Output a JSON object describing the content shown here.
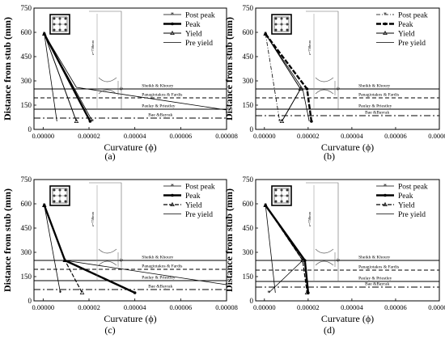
{
  "figure": {
    "panels": [
      "(a)",
      "(b)",
      "(c)",
      "(d)"
    ]
  },
  "chart_data": [
    {
      "panel": "(a)",
      "type": "line",
      "xlabel": "Curvature (ϕ)",
      "ylabel": "Distance from stub (mm)",
      "xlim": [
        -4e-06,
        8e-05
      ],
      "ylim": [
        0,
        750
      ],
      "xticks": [
        "0.00000",
        "0.00002",
        "0.00004",
        "0.00006",
        "0.00008"
      ],
      "yticks": [
        "0",
        "150",
        "300",
        "450",
        "600",
        "750"
      ],
      "legend_position": "top-right",
      "series": [
        {
          "name": "Post peak",
          "style": "thin-star",
          "x": [
            5e-07,
            2.15e-05
          ],
          "y": [
            590,
            50
          ]
        },
        {
          "name": "Peak",
          "style": "thick",
          "x": [
            5e-07,
            2.05e-05
          ],
          "y": [
            590,
            50
          ]
        },
        {
          "name": "Yield",
          "style": "triangle",
          "x": [
            5e-07,
            1.45e-05
          ],
          "y": [
            590,
            50
          ]
        },
        {
          "name": "Pre yield",
          "style": "thin",
          "x": [
            5e-07,
            6e-06
          ],
          "y": [
            590,
            50
          ]
        },
        {
          "name": "Pre yield",
          "style": "thin",
          "x": [
            5e-07,
            1.45e-05,
            8e-05
          ],
          "y": [
            590,
            260,
            120
          ]
        }
      ],
      "reference_lines": [
        {
          "label": "Sheikh & Khoury",
          "y": 250,
          "style": "solid"
        },
        {
          "label": "Panagiotakos & Fardis",
          "y": 195,
          "style": "dashed"
        },
        {
          "label": "Paulay & Priestley",
          "y": 125,
          "style": "solid"
        },
        {
          "label": "Bae &Bayrak",
          "y": 70,
          "style": "dashdot"
        }
      ],
      "inset_labels": {
        "height": "z=750mm",
        "plastic_length": "lp"
      }
    },
    {
      "panel": "(b)",
      "type": "line",
      "xlabel": "Curvature (ϕ)",
      "ylabel": "Distance from stub (mm)",
      "xlim": [
        -4e-06,
        8e-05
      ],
      "ylim": [
        0,
        750
      ],
      "xticks": [
        "0.00000",
        "0.00002",
        "0.00004",
        "0.00006",
        "0.00008"
      ],
      "yticks": [
        "0",
        "150",
        "300",
        "450",
        "600",
        "750"
      ],
      "legend_position": "top-right",
      "series": [
        {
          "name": "Post peak",
          "style": "dashdot-star",
          "x": [
            5e-07,
            7e-06
          ],
          "y": [
            590,
            50
          ]
        },
        {
          "name": "Peak",
          "style": "thick-dashed",
          "x": [
            5e-07,
            1.95e-05,
            2.15e-05
          ],
          "y": [
            590,
            250,
            50
          ]
        },
        {
          "name": "Yield",
          "style": "triangle",
          "x": [
            5e-07,
            1.65e-05,
            8e-06
          ],
          "y": [
            590,
            250,
            50
          ]
        },
        {
          "name": "Pre yield",
          "style": "thin",
          "x": [
            5e-07,
            1.75e-05,
            2.05e-05
          ],
          "y": [
            590,
            250,
            50
          ]
        }
      ],
      "reference_lines": [
        {
          "label": "Sheikh & Khoury",
          "y": 250,
          "style": "solid"
        },
        {
          "label": "Panagiotakos & Fardis",
          "y": 195,
          "style": "dashed"
        },
        {
          "label": "Paulay & Priestley",
          "y": 125,
          "style": "solid"
        },
        {
          "label": "Bae &Bayrak",
          "y": 85,
          "style": "dashdot"
        }
      ],
      "inset_labels": {
        "height": "z=750mm",
        "plastic_length": "lp"
      }
    },
    {
      "panel": "(c)",
      "type": "line",
      "xlabel": "Curvature (ϕ)",
      "ylabel": "Distance from stub (mm)",
      "xlim": [
        -4e-06,
        8e-05
      ],
      "ylim": [
        0,
        750
      ],
      "xticks": [
        "0.00000",
        "0.00002",
        "0.00004",
        "0.00006",
        "0.00008"
      ],
      "yticks": [
        "0",
        "150",
        "300",
        "450",
        "600",
        "750"
      ],
      "legend_position": "top-right",
      "series": [
        {
          "name": "Post peak",
          "style": "thin-star",
          "x": [
            5e-07,
            7.5e-06
          ],
          "y": [
            590,
            50
          ]
        },
        {
          "name": "Peak",
          "style": "thick",
          "x": [
            5e-07,
            9.5e-06,
            4e-05
          ],
          "y": [
            590,
            250,
            50
          ]
        },
        {
          "name": "Yield",
          "style": "dashed",
          "x": [
            5e-07,
            9.5e-06,
            1.7e-05
          ],
          "y": [
            590,
            250,
            50
          ]
        },
        {
          "name": "Pre yield",
          "style": "thin",
          "x": [
            5e-07,
            9.5e-06,
            8e-05
          ],
          "y": [
            590,
            250,
            100
          ]
        }
      ],
      "reference_lines": [
        {
          "label": "Sheikh & Khoury",
          "y": 250,
          "style": "solid"
        },
        {
          "label": "Panagiotakos & Fardis",
          "y": 195,
          "style": "dashed"
        },
        {
          "label": "Paulay & Priestley",
          "y": 125,
          "style": "solid"
        },
        {
          "label": "Bae &Bayrak",
          "y": 70,
          "style": "dashdot"
        }
      ],
      "inset_labels": {
        "height": "z=750mm",
        "plastic_length": "lp"
      }
    },
    {
      "panel": "(d)",
      "type": "line",
      "xlabel": "Curvature (ϕ)",
      "ylabel": "Distance from stub (mm)",
      "xlim": [
        -4e-06,
        8e-05
      ],
      "ylim": [
        0,
        750
      ],
      "xticks": [
        "0.00000",
        "0.00002",
        "0.00004",
        "0.00006",
        "0.00008"
      ],
      "yticks": [
        "0",
        "150",
        "300",
        "450",
        "600",
        "750"
      ],
      "legend_position": "top-right",
      "series": [
        {
          "name": "Post peak",
          "style": "thin-star",
          "x": [
            5e-07,
            1.75e-05,
            2e-06
          ],
          "y": [
            590,
            250,
            50
          ]
        },
        {
          "name": "Peak",
          "style": "thick",
          "x": [
            5e-07,
            1.85e-05,
            2e-05
          ],
          "y": [
            590,
            250,
            50
          ]
        },
        {
          "name": "Yield",
          "style": "dashed",
          "x": [
            5e-07,
            1.75e-05,
            1.95e-05
          ],
          "y": [
            590,
            250,
            50
          ]
        },
        {
          "name": "Pre yield",
          "style": "thin",
          "x": [
            5e-07,
            5e-06
          ],
          "y": [
            590,
            50
          ]
        }
      ],
      "reference_lines": [
        {
          "label": "Sheikh & Khoury",
          "y": 250,
          "style": "solid"
        },
        {
          "label": "Panagiotakos & Fardis",
          "y": 190,
          "style": "dashed"
        },
        {
          "label": "Paulay & Priestley",
          "y": 120,
          "style": "solid"
        },
        {
          "label": "Bae &Bayrak",
          "y": 85,
          "style": "dashdot"
        }
      ],
      "inset_labels": {
        "height": "z=750mm",
        "plastic_length": "lp"
      }
    }
  ]
}
